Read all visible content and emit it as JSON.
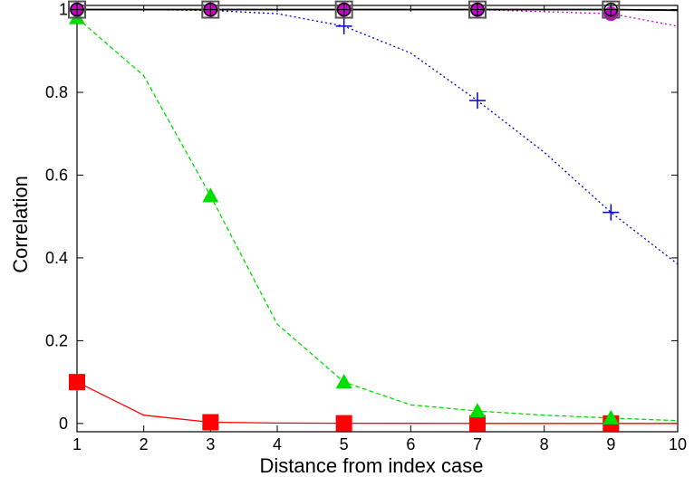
{
  "chart_data": {
    "type": "line",
    "title": "",
    "xlabel": "Distance from index case",
    "ylabel": "Correlation",
    "xlim": [
      1,
      10
    ],
    "ylim": [
      -0.02,
      1.01
    ],
    "x_ticks": [
      1,
      2,
      3,
      4,
      5,
      6,
      7,
      8,
      9,
      10
    ],
    "y_ticks": [
      0,
      0.2,
      0.4,
      0.6,
      0.8,
      1
    ],
    "x_tick_labels": [
      "1",
      "2",
      "3",
      "4",
      "5",
      "6",
      "7",
      "8",
      "9",
      "10"
    ],
    "y_tick_labels": [
      "0",
      "0.2",
      "0.4",
      "0.6",
      "0.8",
      "1"
    ],
    "grid": false,
    "legend": "none",
    "x": [
      1,
      2,
      3,
      4,
      5,
      6,
      7,
      8,
      9,
      10
    ],
    "series": [
      {
        "color": "#ff0000",
        "line_style": "solid",
        "marker": "square",
        "marker_every": 2,
        "values": [
          0.1,
          0.02,
          0.003,
          0.001,
          0.0005,
          0.0003,
          0.0002,
          0.0001,
          0.0001,
          0.0001
        ]
      },
      {
        "color": "#00dd00",
        "line_style": "dashed",
        "marker": "triangle",
        "marker_every": 2,
        "values": [
          0.98,
          0.84,
          0.55,
          0.24,
          0.1,
          0.045,
          0.03,
          0.02,
          0.013,
          0.007
        ]
      },
      {
        "color": "#0000cc",
        "line_style": "dotted",
        "marker": "plus",
        "marker_every": 2,
        "values": [
          1.0,
          1.0,
          0.998,
          0.99,
          0.96,
          0.895,
          0.78,
          0.655,
          0.51,
          0.385
        ]
      },
      {
        "color": "#cc00cc",
        "line_style": "dotted",
        "marker": "circle",
        "marker_every": 2,
        "values": [
          1.0,
          1.0,
          1.0,
          1.0,
          1.0,
          1.0,
          1.0,
          0.995,
          0.99,
          0.96
        ]
      },
      {
        "color": "#000000",
        "line_style": "solid",
        "marker": "square-open",
        "marker_every": 2,
        "values": [
          1.0,
          1.0,
          1.0,
          1.0,
          1.0,
          1.0,
          1.0,
          1.0,
          1.0,
          0.998
        ]
      },
      {
        "color": "#000000",
        "line_style": "solid",
        "marker": "circle-open",
        "marker_every": 2,
        "values": [
          1.0,
          1.0,
          1.0,
          1.0,
          1.0,
          1.0,
          1.0,
          1.0,
          1.0,
          0.999
        ]
      }
    ]
  }
}
